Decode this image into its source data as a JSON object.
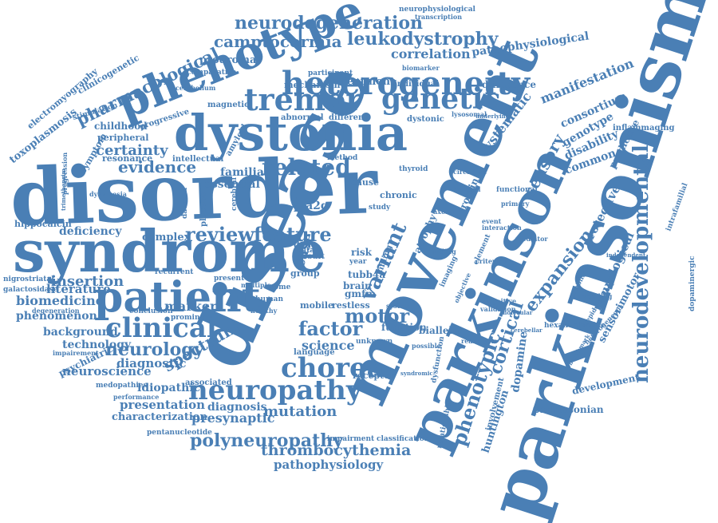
{
  "colors": {
    "word": "#4a7fb5",
    "background": "#ffffff"
  },
  "words": {
    "parkinsonism": "parkinsonism",
    "disorder": "disorder",
    "disease": "disease",
    "syndrome": "syndrome",
    "movement": "movement",
    "dystonia": "dystonia",
    "phenotype": "phenotype",
    "patient": "patient",
    "parkinson": "parkinson",
    "heterogeneity": "heterogeneity",
    "tremor": "tremor",
    "genetic": "genetic",
    "neuropathy": "neuropathy",
    "clinical": "clinical",
    "chorea": "chorea",
    "neurodegeneration": "neurodegeneration",
    "leukodystrophy": "leukodystrophy",
    "camptocormia": "camptocormia",
    "pharmacological": "pharmacological",
    "related": "related",
    "review": "review",
    "feature": "feature",
    "variant": "variant",
    "motor": "motor",
    "factor": "factor",
    "neurology": "neurology",
    "spectrum": "spectrum",
    "polyneuropathy": "polyneuropathy",
    "thrombocythemia": "thrombocythemia",
    "pathophysiology": "pathophysiology",
    "neurodevelopmental": "neurodevelopmental",
    "expansion": "expansion",
    "phenotypic": "phenotypic",
    "cortical": "cortical",
    "sensory": "sensory",
    "systematic": "systematic",
    "correlation": "correlation",
    "pathophysiological": "pathophysiological",
    "manifestation": "manifestation",
    "certainty": "certainty",
    "evidence": "evidence",
    "insertion": "insertion",
    "deficiency": "deficiency",
    "biomedicine": "biomedicine",
    "phenomenon": "phenomenon",
    "literature": "literature",
    "background": "background",
    "technology": "technology",
    "neuroscience": "neuroscience",
    "diagnostic": "diagnostic",
    "presentation": "presentation",
    "characterization": "characterization",
    "presynaptic": "presynaptic",
    "mutation": "mutation",
    "diagnosis": "diagnosis",
    "marker": "marker",
    "idiopathic": "idiopathic",
    "essential": "essential",
    "familial": "familial",
    "complex": "complex",
    "science": "science",
    "gmfm": "gmfm",
    "pla2g": "pla2g",
    "tubb4a": "tubb4a",
    "huntington": "huntington",
    "dopamine": "dopamine",
    "parkinsonian": "parkinsonian",
    "development": "development",
    "sensorimotor": "sensorimotor",
    "neurological": "neurological",
    "protective": "protective",
    "consortium": "consortium",
    "genotype": "genotype",
    "disability": "disability",
    "common": "common",
    "predictive": "predictive",
    "inflammaging": "inflammaging",
    "hippocalcin": "hippocalcin",
    "toxoplasmosis": "toxoplasmosis",
    "electromyography": "electromyography",
    "clinicogenetic": "clinicogenetic",
    "prodromal": "prodromal",
    "treatment": "treatment",
    "mechanism": "mechanism",
    "difference": "difference",
    "individual": "individual",
    "participant": "participant",
    "biomarker": "biomarker",
    "neurophysiological": "neurophysiological",
    "transcription": "transcription",
    "comparative": "comparative",
    "cerebellum": "cerebellum",
    "magnetic": "magnetic",
    "abnormal": "abnormal",
    "different": "different",
    "dystonic": "dystonic",
    "childhood": "childhood",
    "progressive": "progressive",
    "stimulation": "stimulation",
    "peripheral": "peripheral",
    "symptom": "symptom",
    "resonance": "resonance",
    "intellectual": "intellectual",
    "method": "method",
    "thyroid": "thyroid",
    "cause": "cause",
    "chronic": "chronic",
    "protein": "protein",
    "atrophy": "atrophy",
    "functional": "functional",
    "isolated": "isolated",
    "circadian": "circadian",
    "axonal": "axonal",
    "interaction": "interaction",
    "element": "element",
    "event": "event",
    "mediator": "mediator",
    "objective": "objective",
    "imaging": "imaging",
    "criterion": "criterion",
    "sibling": "sibling",
    "case": "case",
    "risk": "risk",
    "drug": "drug",
    "brain": "brain",
    "restless": "restless",
    "mobile": "mobile",
    "group": "group",
    "exome": "exome",
    "human": "human",
    "present": "present",
    "recurrent": "recurrent",
    "nigrostriatal": "nigrostriatal",
    "galactosidase": "galactosidase",
    "degeneration": "degeneration",
    "conclusion": "conclusion",
    "prominent": "prominent",
    "impairement": "impairement",
    "psychiatric": "psychiatric",
    "medopathies": "medopathies",
    "performance": "performance",
    "pentanucleotide": "pentanucleotide",
    "associated": "associated",
    "receptor": "receptor",
    "language": "language",
    "function": "function",
    "unknown": "unknown",
    "biallelic": "biallelic",
    "reanalysis": "reanalysis",
    "impairment": "impairment",
    "classification": "classification",
    "relationship": "relationship",
    "involvement": "involvement",
    "hexanucleotide": "hexanucleotide",
    "unravelling": "unravelling",
    "dopaminergic": "dopaminergic",
    "intrafamilial": "intrafamilial",
    "independent": "independent",
    "heterogeneous": "heterogeneous",
    "variability": "variability",
    "validation": "validation",
    "cognitive": "cognitive",
    "primary": "primary",
    "lysosomal": "lysosomal",
    "finding": "finding",
    "datscan": "datscan",
    "placebo": "placebo",
    "cerebral": "cerebral",
    "amyloid": "amyloid",
    "dyskinesia": "dyskinesia",
    "progression": "progression",
    "trimethoprim": "trimethoprim",
    "multiple": "multiple",
    "healthy": "healthy",
    "study": "study",
    "year": "year",
    "result": "result",
    "data": "data",
    "system": "system",
    "possible": "possible",
    "syndromic": "syndromic",
    "dysfunction": "dysfunction",
    "molecular": "molecular",
    "underlying": "underlying",
    "epidemiology": "epidemiology",
    "benchmark": "benchmark",
    "cerebellar": "cerebellar"
  }
}
